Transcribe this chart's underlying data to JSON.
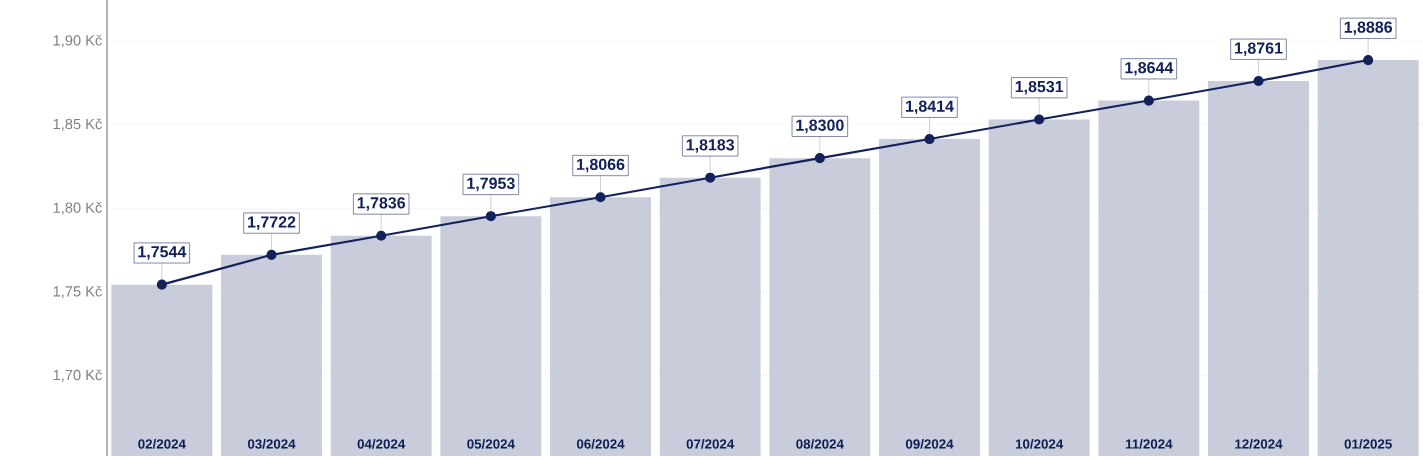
{
  "chart_data": {
    "type": "line",
    "categories": [
      "02/2024",
      "03/2024",
      "04/2024",
      "05/2024",
      "06/2024",
      "07/2024",
      "08/2024",
      "09/2024",
      "10/2024",
      "11/2024",
      "12/2024",
      "01/2025"
    ],
    "series": [
      {
        "type": "bar",
        "color": "#c8ccdb",
        "values": [
          1.7544,
          1.7722,
          1.7836,
          1.7953,
          1.8066,
          1.8183,
          1.83,
          1.8414,
          1.8531,
          1.8644,
          1.8761,
          1.8886
        ]
      },
      {
        "color": "#13225a",
        "marker": "circle",
        "values": [
          1.7544,
          1.7722,
          1.7836,
          1.7953,
          1.8066,
          1.8183,
          1.83,
          1.8414,
          1.8531,
          1.8644,
          1.8761,
          1.8886
        ],
        "value_labels": [
          "1,7544",
          "1,7722",
          "1,7836",
          "1,7953",
          "1,8066",
          "1,8183",
          "1,8300",
          "1,8414",
          "1,8531",
          "1,8644",
          "1,8761",
          "1,8886"
        ]
      }
    ],
    "ylim": [
      1.652,
      1.9245
    ],
    "yticks": [
      {
        "value": 1.7,
        "label": "1,70 Kč"
      },
      {
        "value": 1.75,
        "label": "1,75 Kč"
      },
      {
        "value": 1.8,
        "label": "1,80 Kč"
      },
      {
        "value": 1.85,
        "label": "1,85 Kč"
      },
      {
        "value": 1.9,
        "label": "1,90 Kč"
      }
    ],
    "grid": "y",
    "line_style": "solid"
  }
}
